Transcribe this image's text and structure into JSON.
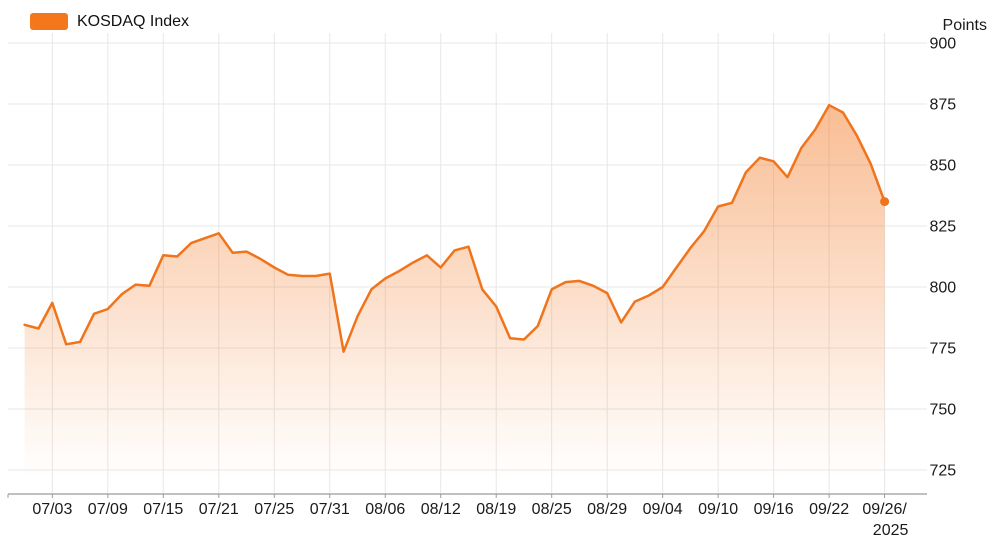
{
  "legend": {
    "label": "KOSDAQ Index"
  },
  "y_axis": {
    "unit": "Points"
  },
  "colors": {
    "line": "#f0741c",
    "legend_swatch": "#f5771c",
    "fill_rgb": "242,116,28",
    "grid": "#e7e7e7",
    "axis": "#9b9b9b",
    "text": "#1a1a1a"
  },
  "chart_data": {
    "type": "area",
    "title": "KOSDAQ Index",
    "ylabel": "Points",
    "legend_position": "top-left",
    "grid": true,
    "marker_on_last_point": true,
    "ylim": [
      715,
      903
    ],
    "y_ticks": [
      900,
      875,
      850,
      825,
      800,
      775,
      750,
      725
    ],
    "x": [
      "07/01",
      "07/02",
      "07/03",
      "07/04",
      "07/07",
      "07/08",
      "07/09",
      "07/10",
      "07/11",
      "07/14",
      "07/15",
      "07/16",
      "07/17",
      "07/18",
      "07/21",
      "07/22",
      "07/23",
      "07/24",
      "07/25",
      "07/28",
      "07/29",
      "07/30",
      "07/31",
      "08/01",
      "08/04",
      "08/05",
      "08/06",
      "08/07",
      "08/08",
      "08/11",
      "08/12",
      "08/13",
      "08/14",
      "08/18",
      "08/19",
      "08/20",
      "08/21",
      "08/22",
      "08/25",
      "08/26",
      "08/27",
      "08/28",
      "08/29",
      "09/01",
      "09/02",
      "09/03",
      "09/04",
      "09/05",
      "09/08",
      "09/09",
      "09/10",
      "09/11",
      "09/12",
      "09/15",
      "09/16",
      "09/17",
      "09/18",
      "09/19",
      "09/22",
      "09/23",
      "09/24",
      "09/25",
      "09/26"
    ],
    "values": [
      784.5,
      783,
      793.5,
      776.5,
      777.5,
      789,
      791,
      797,
      801,
      800.5,
      813,
      812.5,
      818,
      820,
      822,
      814,
      814.5,
      811.5,
      808,
      805,
      804.5,
      804.5,
      805.5,
      773.5,
      788,
      799,
      803.5,
      806.5,
      810,
      813,
      808,
      815,
      816.5,
      799,
      792,
      779,
      778.5,
      784,
      799,
      802,
      802.5,
      800.5,
      797.5,
      785.5,
      794,
      796.5,
      800,
      808,
      816,
      823,
      833,
      834.5,
      847,
      853,
      851.5,
      845,
      857,
      864.5,
      874.5,
      871.5,
      862,
      850.5,
      835
    ],
    "x_ticks": [
      {
        "index": 2,
        "label": "07/03"
      },
      {
        "index": 6,
        "label": "07/09"
      },
      {
        "index": 10,
        "label": "07/15"
      },
      {
        "index": 14,
        "label": "07/21"
      },
      {
        "index": 18,
        "label": "07/25"
      },
      {
        "index": 22,
        "label": "07/31"
      },
      {
        "index": 26,
        "label": "08/06"
      },
      {
        "index": 30,
        "label": "08/12"
      },
      {
        "index": 34,
        "label": "08/19"
      },
      {
        "index": 38,
        "label": "08/25"
      },
      {
        "index": 42,
        "label": "08/29"
      },
      {
        "index": 46,
        "label": "09/04"
      },
      {
        "index": 50,
        "label": "09/10"
      },
      {
        "index": 54,
        "label": "09/16"
      },
      {
        "index": 58,
        "label": "09/22"
      },
      {
        "index": 62,
        "label": "09/26/",
        "label2": "2025"
      }
    ]
  }
}
